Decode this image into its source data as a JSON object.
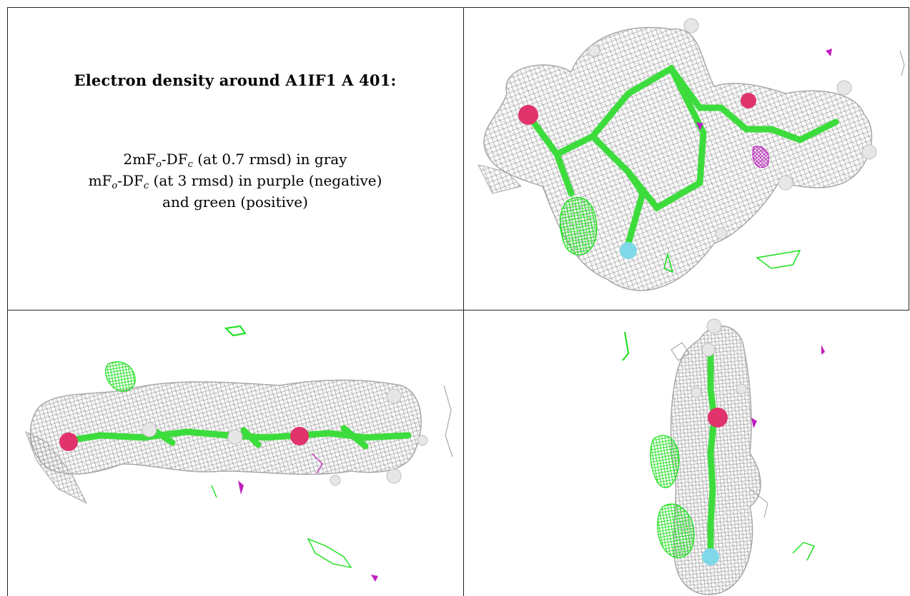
{
  "title": "Electron density around A1IF1 A 401:",
  "legend": {
    "line1": {
      "pre": "2mF",
      "sub1": "o",
      "mid": "-DF",
      "sub2": "c",
      "post": " (at 0.7 rmsd) in gray"
    },
    "line2": {
      "pre": "mF",
      "sub1": "o",
      "mid": "-DF",
      "sub2": "c",
      "post": " (at 3 rmsd) in purple (negative)"
    },
    "line3": "and green (positive)"
  },
  "colors": {
    "mesh_gray": "#a8a8a8",
    "carbon_green": "#3ddc3d",
    "oxygen_red": "#e0336b",
    "fluorine_cyan": "#7fd8e8",
    "hydrogen_white": "#e6e6e6",
    "positive_green": "#18e018",
    "negative_purple": "#c020c0",
    "border": "#222222"
  },
  "panels": [
    {
      "name": "view-top-right",
      "description_icon": "density-map-face-on"
    },
    {
      "name": "view-bottom-left",
      "description_icon": "density-map-side"
    },
    {
      "name": "view-bottom-right",
      "description_icon": "density-map-end-on"
    }
  ]
}
